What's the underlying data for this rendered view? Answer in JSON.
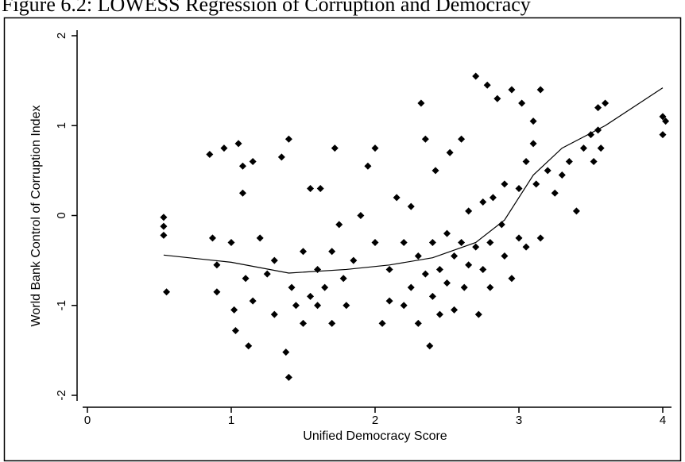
{
  "chart_data": {
    "type": "scatter",
    "title": "Figure 6.2: LOWESS Regression of Corruption and Democracy",
    "x_label": "Unified Democracy Score",
    "y_label": "World Bank Control of Corruption Index",
    "xlim": [
      0,
      4
    ],
    "ylim": [
      -2,
      2
    ],
    "xticks": [
      0,
      1,
      2,
      3,
      4
    ],
    "yticks": [
      -2,
      -1,
      0,
      1,
      2
    ],
    "color": "#000000",
    "series": [
      {
        "type": "scatter",
        "x": [
          0.53,
          0.53,
          0.53,
          0.55,
          0.85,
          0.87,
          0.9,
          0.9,
          0.95,
          1.0,
          1.02,
          1.03,
          1.05,
          1.08,
          1.08,
          1.1,
          1.12,
          1.15,
          1.15,
          1.2,
          1.25,
          1.3,
          1.3,
          1.35,
          1.38,
          1.4,
          1.4,
          1.42,
          1.45,
          1.5,
          1.5,
          1.55,
          1.55,
          1.6,
          1.6,
          1.62,
          1.65,
          1.7,
          1.7,
          1.72,
          1.75,
          1.78,
          1.8,
          1.85,
          1.9,
          1.95,
          2.0,
          2.0,
          2.05,
          2.1,
          2.1,
          2.15,
          2.2,
          2.2,
          2.25,
          2.25,
          2.3,
          2.3,
          2.32,
          2.35,
          2.35,
          2.38,
          2.4,
          2.4,
          2.42,
          2.45,
          2.45,
          2.5,
          2.5,
          2.52,
          2.55,
          2.55,
          2.6,
          2.6,
          2.62,
          2.65,
          2.65,
          2.7,
          2.7,
          2.72,
          2.75,
          2.75,
          2.78,
          2.8,
          2.8,
          2.82,
          2.85,
          2.88,
          2.9,
          2.9,
          2.95,
          2.95,
          3.0,
          3.0,
          3.02,
          3.05,
          3.05,
          3.1,
          3.1,
          3.12,
          3.15,
          3.15,
          3.2,
          3.25,
          3.3,
          3.35,
          3.4,
          3.45,
          3.5,
          3.52,
          3.55,
          3.55,
          3.57,
          3.6,
          4.0,
          4.0,
          4.02
        ],
        "values": [
          -0.02,
          -0.12,
          -0.22,
          -0.85,
          0.68,
          -0.25,
          -0.85,
          -0.55,
          0.75,
          -0.3,
          -1.05,
          -1.28,
          0.8,
          0.55,
          0.25,
          -0.7,
          -1.45,
          -0.95,
          0.6,
          -0.25,
          -0.65,
          -0.5,
          -1.1,
          0.65,
          -1.52,
          -1.8,
          0.85,
          -0.8,
          -1.0,
          -0.4,
          -1.2,
          -0.9,
          0.3,
          -1.0,
          -0.6,
          0.3,
          -0.8,
          -1.2,
          -0.4,
          0.75,
          -0.1,
          -0.7,
          -1.0,
          -0.5,
          0.0,
          0.55,
          0.75,
          -0.3,
          -1.2,
          -0.6,
          -0.95,
          0.2,
          -1.0,
          -0.3,
          0.1,
          -0.8,
          -0.45,
          -1.2,
          1.25,
          -0.65,
          0.85,
          -1.45,
          -0.3,
          -0.9,
          0.5,
          -0.6,
          -1.1,
          -0.2,
          -0.75,
          0.7,
          -0.45,
          -1.05,
          0.85,
          -0.3,
          -0.8,
          -0.55,
          0.05,
          1.55,
          -0.35,
          -1.1,
          -0.6,
          0.15,
          1.45,
          -0.3,
          -0.8,
          0.2,
          1.3,
          -0.1,
          0.35,
          -0.45,
          1.4,
          -0.7,
          0.3,
          -0.25,
          1.25,
          0.6,
          -0.35,
          0.8,
          1.05,
          0.35,
          1.4,
          -0.25,
          0.5,
          0.25,
          0.45,
          0.6,
          0.05,
          0.75,
          0.9,
          0.6,
          1.2,
          0.95,
          0.75,
          1.25,
          1.1,
          0.9,
          1.05
        ]
      },
      {
        "type": "line",
        "x": [
          0.53,
          1.0,
          1.4,
          1.8,
          2.1,
          2.4,
          2.7,
          2.9,
          3.1,
          3.3,
          3.6,
          4.0
        ],
        "values": [
          -0.44,
          -0.52,
          -0.64,
          -0.6,
          -0.55,
          -0.47,
          -0.3,
          -0.05,
          0.45,
          0.75,
          1.0,
          1.42
        ]
      }
    ]
  }
}
